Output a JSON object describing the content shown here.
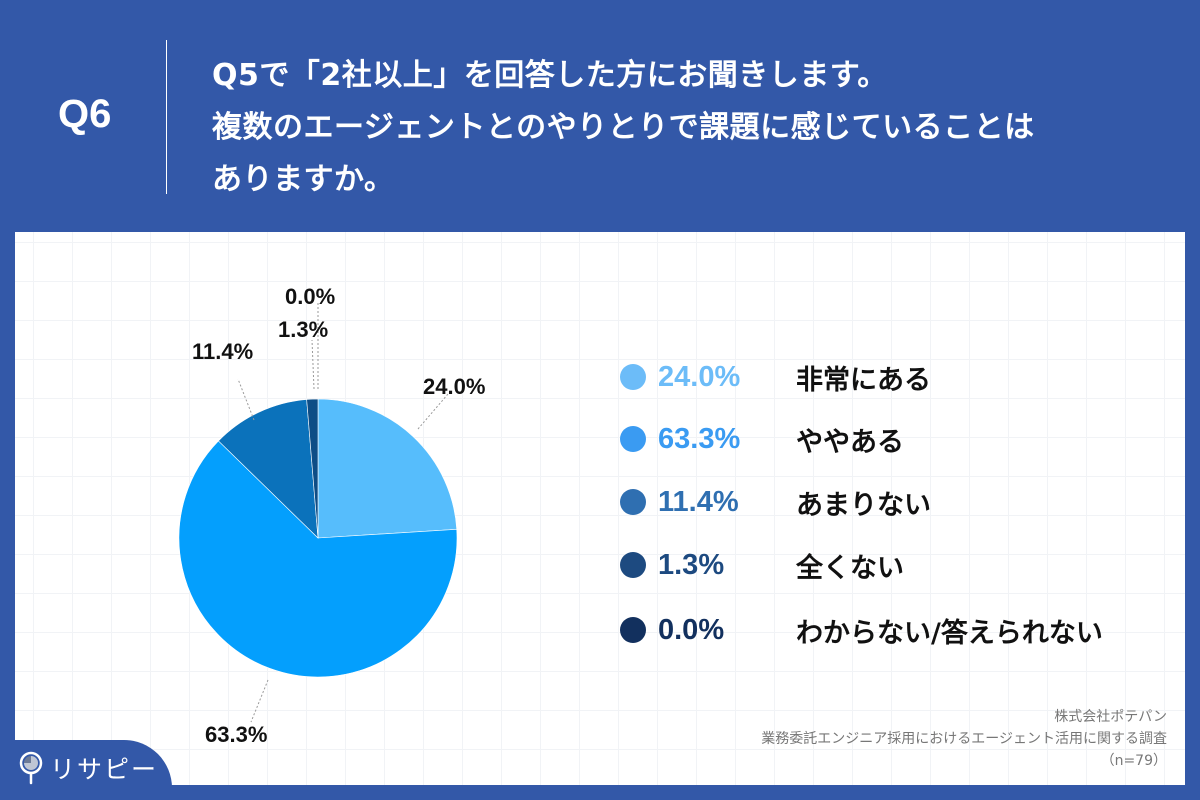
{
  "header": {
    "question_number": "Q6",
    "question_lines": [
      "Q5で「2社以上」を回答した方にお聞きします。",
      "複数のエージェントとのやりとりで課題に感じていることは",
      "ありますか。"
    ]
  },
  "chart_data": {
    "type": "pie",
    "title": "Q5で「2社以上」を回答した方にお聞きします。複数のエージェントとのやりとりで課題に感じていることはありますか。",
    "categories": [
      "非常にある",
      "ややある",
      "あまりない",
      "全くない",
      "わからない/答えられない"
    ],
    "values": [
      24.0,
      63.3,
      11.4,
      1.3,
      0.0
    ],
    "unit": "%",
    "colors": [
      "#56bdfc",
      "#049ffd",
      "#0b72bb",
      "#0d4d86",
      "#0e2f5c"
    ],
    "legend_colors": [
      "#6cbcf8",
      "#3a9bf2",
      "#2f6fb1",
      "#1d4a80",
      "#12305e"
    ],
    "start_angle_deg": 0,
    "direction": "clockwise",
    "legend_position": "right",
    "sample_size": "n=79"
  },
  "pie_labels": [
    "24.0%",
    "63.3%",
    "11.4%",
    "1.3%",
    "0.0%"
  ],
  "legend": [
    {
      "pct": "24.0%",
      "label": "非常にある",
      "color": "#6cbcf8"
    },
    {
      "pct": "63.3%",
      "label": "ややある",
      "color": "#3a9bf2"
    },
    {
      "pct": "11.4%",
      "label": "あまりない",
      "color": "#2f6fb1"
    },
    {
      "pct": "1.3%",
      "label": "全くない",
      "color": "#1d4a80"
    },
    {
      "pct": "0.0%",
      "label": "わからない/答えられない",
      "color": "#12305e"
    }
  ],
  "credit": {
    "company": "株式会社ポテパン",
    "survey": "業務委託エンジニア採用におけるエージェント活用に関する調査",
    "sample": "（n=79）"
  },
  "logo": {
    "text": "リサピー",
    "icon": "magnifier-pie-icon"
  }
}
